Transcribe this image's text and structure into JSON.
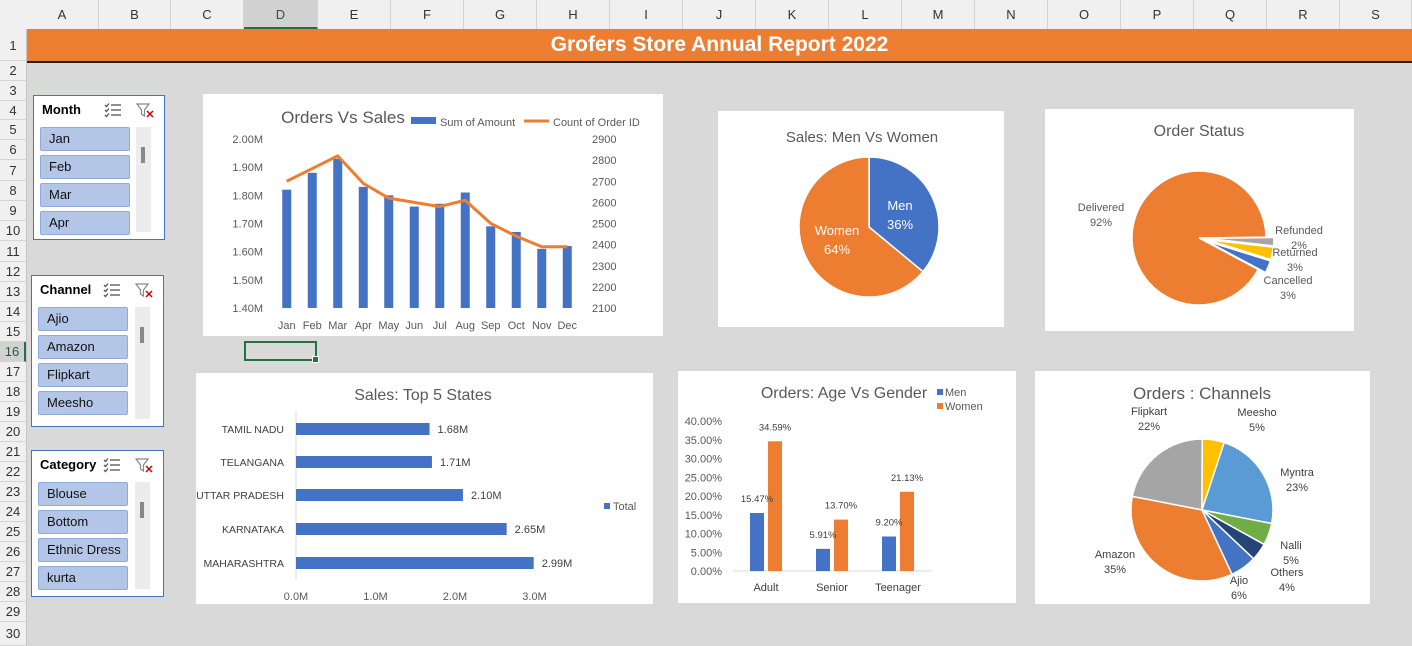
{
  "sheet": {
    "columns": [
      "A",
      "B",
      "C",
      "D",
      "E",
      "F",
      "G",
      "H",
      "I",
      "J",
      "K",
      "L",
      "M",
      "N",
      "O",
      "P",
      "Q",
      "R",
      "S"
    ],
    "rows": [
      "1",
      "2",
      "3",
      "4",
      "5",
      "6",
      "7",
      "8",
      "9",
      "10",
      "11",
      "12",
      "13",
      "14",
      "15",
      "16",
      "17",
      "18",
      "19",
      "20",
      "21",
      "22",
      "23",
      "24",
      "25",
      "26",
      "27",
      "28",
      "29",
      "30"
    ],
    "selected_column": "D",
    "selected_row": "16"
  },
  "dashboard_title": "Grofers Store Annual Report 2022",
  "slicers": [
    {
      "title": "Month",
      "items": [
        "Jan",
        "Feb",
        "Mar",
        "Apr"
      ]
    },
    {
      "title": "Channel",
      "items": [
        "Ajio",
        "Amazon",
        "Flipkart",
        "Meesho"
      ]
    },
    {
      "title": "Category",
      "items": [
        "Blouse",
        "Bottom",
        "Ethnic Dress",
        "kurta"
      ]
    }
  ],
  "colors": {
    "blue": "#4472c4",
    "orange": "#ed7d31",
    "gray": "#a5a5a5",
    "yellow": "#ffc000",
    "lightblue": "#5b9bd5",
    "green": "#70ad47",
    "darkblue": "#264478",
    "text": "#595959"
  },
  "charts": {
    "orders_vs_sales": {
      "title": "Orders Vs Sales",
      "legend": [
        "Sum of Amount",
        "Count of Order ID"
      ],
      "categories": [
        "Jan",
        "Feb",
        "Mar",
        "Apr",
        "May",
        "Jun",
        "Jul",
        "Aug",
        "Sep",
        "Oct",
        "Nov",
        "Dec"
      ],
      "left_ticks": [
        "1.40M",
        "1.50M",
        "1.60M",
        "1.70M",
        "1.80M",
        "1.90M",
        "2.00M"
      ],
      "right_ticks": [
        "2100",
        "2200",
        "2300",
        "2400",
        "2500",
        "2600",
        "2700",
        "2800",
        "2900"
      ]
    },
    "men_vs_women": {
      "title": "Sales: Men Vs Women",
      "labels": [
        {
          "name": "Men",
          "pct": "36%"
        },
        {
          "name": "Women",
          "pct": "64%"
        }
      ]
    },
    "order_status": {
      "title": "Order Status",
      "labels": [
        {
          "name": "Delivered",
          "pct": "92%"
        },
        {
          "name": "Refunded",
          "pct": "2%"
        },
        {
          "name": "Returned",
          "pct": "3%"
        },
        {
          "name": "Cancelled",
          "pct": "3%"
        }
      ]
    },
    "top_states": {
      "title": "Sales: Top 5 States",
      "states": [
        "TAMIL NADU",
        "TELANGANA",
        "UTTAR PRADESH",
        "KARNATAKA",
        "MAHARASHTRA"
      ],
      "value_labels": [
        "1.68M",
        "1.71M",
        "2.10M",
        "2.65M",
        "2.99M"
      ],
      "x_ticks": [
        "0.0M",
        "1.0M",
        "2.0M",
        "3.0M"
      ],
      "legend": "Total"
    },
    "age_vs_gender": {
      "title": "Orders: Age Vs Gender",
      "legend": [
        "Men",
        "Women"
      ],
      "categories": [
        "Adult",
        "Senior",
        "Teenager"
      ],
      "men_labels": [
        "15.47%",
        "5.91%",
        "9.20%"
      ],
      "women_labels": [
        "34.59%",
        "13.70%",
        "21.13%"
      ],
      "y_ticks": [
        "0.00%",
        "5.00%",
        "10.00%",
        "15.00%",
        "20.00%",
        "25.00%",
        "30.00%",
        "35.00%",
        "40.00%"
      ]
    },
    "channels": {
      "title": "Orders : Channels",
      "labels": [
        {
          "name": "Flipkart",
          "pct": "22%"
        },
        {
          "name": "Meesho",
          "pct": "5%"
        },
        {
          "name": "Myntra",
          "pct": "23%"
        },
        {
          "name": "Nalli",
          "pct": "5%"
        },
        {
          "name": "Others",
          "pct": "4%"
        },
        {
          "name": "Ajio",
          "pct": "6%"
        },
        {
          "name": "Amazon",
          "pct": "35%"
        }
      ]
    }
  },
  "chart_data": [
    {
      "type": "bar",
      "title": "Orders Vs Sales",
      "categories": [
        "Jan",
        "Feb",
        "Mar",
        "Apr",
        "May",
        "Jun",
        "Jul",
        "Aug",
        "Sep",
        "Oct",
        "Nov",
        "Dec"
      ],
      "series": [
        {
          "name": "Sum of Amount",
          "type": "bar",
          "axis": "left",
          "values": [
            1.82,
            1.88,
            1.93,
            1.83,
            1.8,
            1.76,
            1.77,
            1.81,
            1.69,
            1.67,
            1.61,
            1.62
          ]
        },
        {
          "name": "Count of Order ID",
          "type": "line",
          "axis": "right",
          "values": [
            2700,
            2760,
            2820,
            2690,
            2620,
            2600,
            2580,
            2610,
            2500,
            2440,
            2390,
            2390
          ]
        }
      ],
      "ylim_left": [
        1.4,
        2.0
      ],
      "ylim_right": [
        2100,
        2900
      ],
      "legend": "top-right"
    },
    {
      "type": "pie",
      "title": "Sales: Men Vs Women",
      "categories": [
        "Men",
        "Women"
      ],
      "values": [
        36,
        64
      ]
    },
    {
      "type": "pie",
      "title": "Order Status",
      "categories": [
        "Delivered",
        "Refunded",
        "Returned",
        "Cancelled"
      ],
      "values": [
        92,
        2,
        3,
        3
      ]
    },
    {
      "type": "bar",
      "orientation": "horizontal",
      "title": "Sales: Top 5 States",
      "categories": [
        "TAMIL NADU",
        "TELANGANA",
        "UTTAR PRADESH",
        "KARNATAKA",
        "MAHARASHTRA"
      ],
      "series": [
        {
          "name": "Total",
          "values": [
            1.68,
            1.71,
            2.1,
            2.65,
            2.99
          ]
        }
      ],
      "xlim": [
        0,
        3.5
      ],
      "legend": "right"
    },
    {
      "type": "bar",
      "title": "Orders: Age Vs Gender",
      "categories": [
        "Adult",
        "Senior",
        "Teenager"
      ],
      "series": [
        {
          "name": "Men",
          "values": [
            15.47,
            5.91,
            9.2
          ]
        },
        {
          "name": "Women",
          "values": [
            34.59,
            13.7,
            21.13
          ]
        }
      ],
      "ylim": [
        0,
        40
      ],
      "legend": "top-right"
    },
    {
      "type": "pie",
      "title": "Orders : Channels",
      "categories": [
        "Flipkart",
        "Meesho",
        "Myntra",
        "Nalli",
        "Others",
        "Ajio",
        "Amazon"
      ],
      "values": [
        22,
        5,
        23,
        5,
        4,
        6,
        35
      ]
    }
  ]
}
